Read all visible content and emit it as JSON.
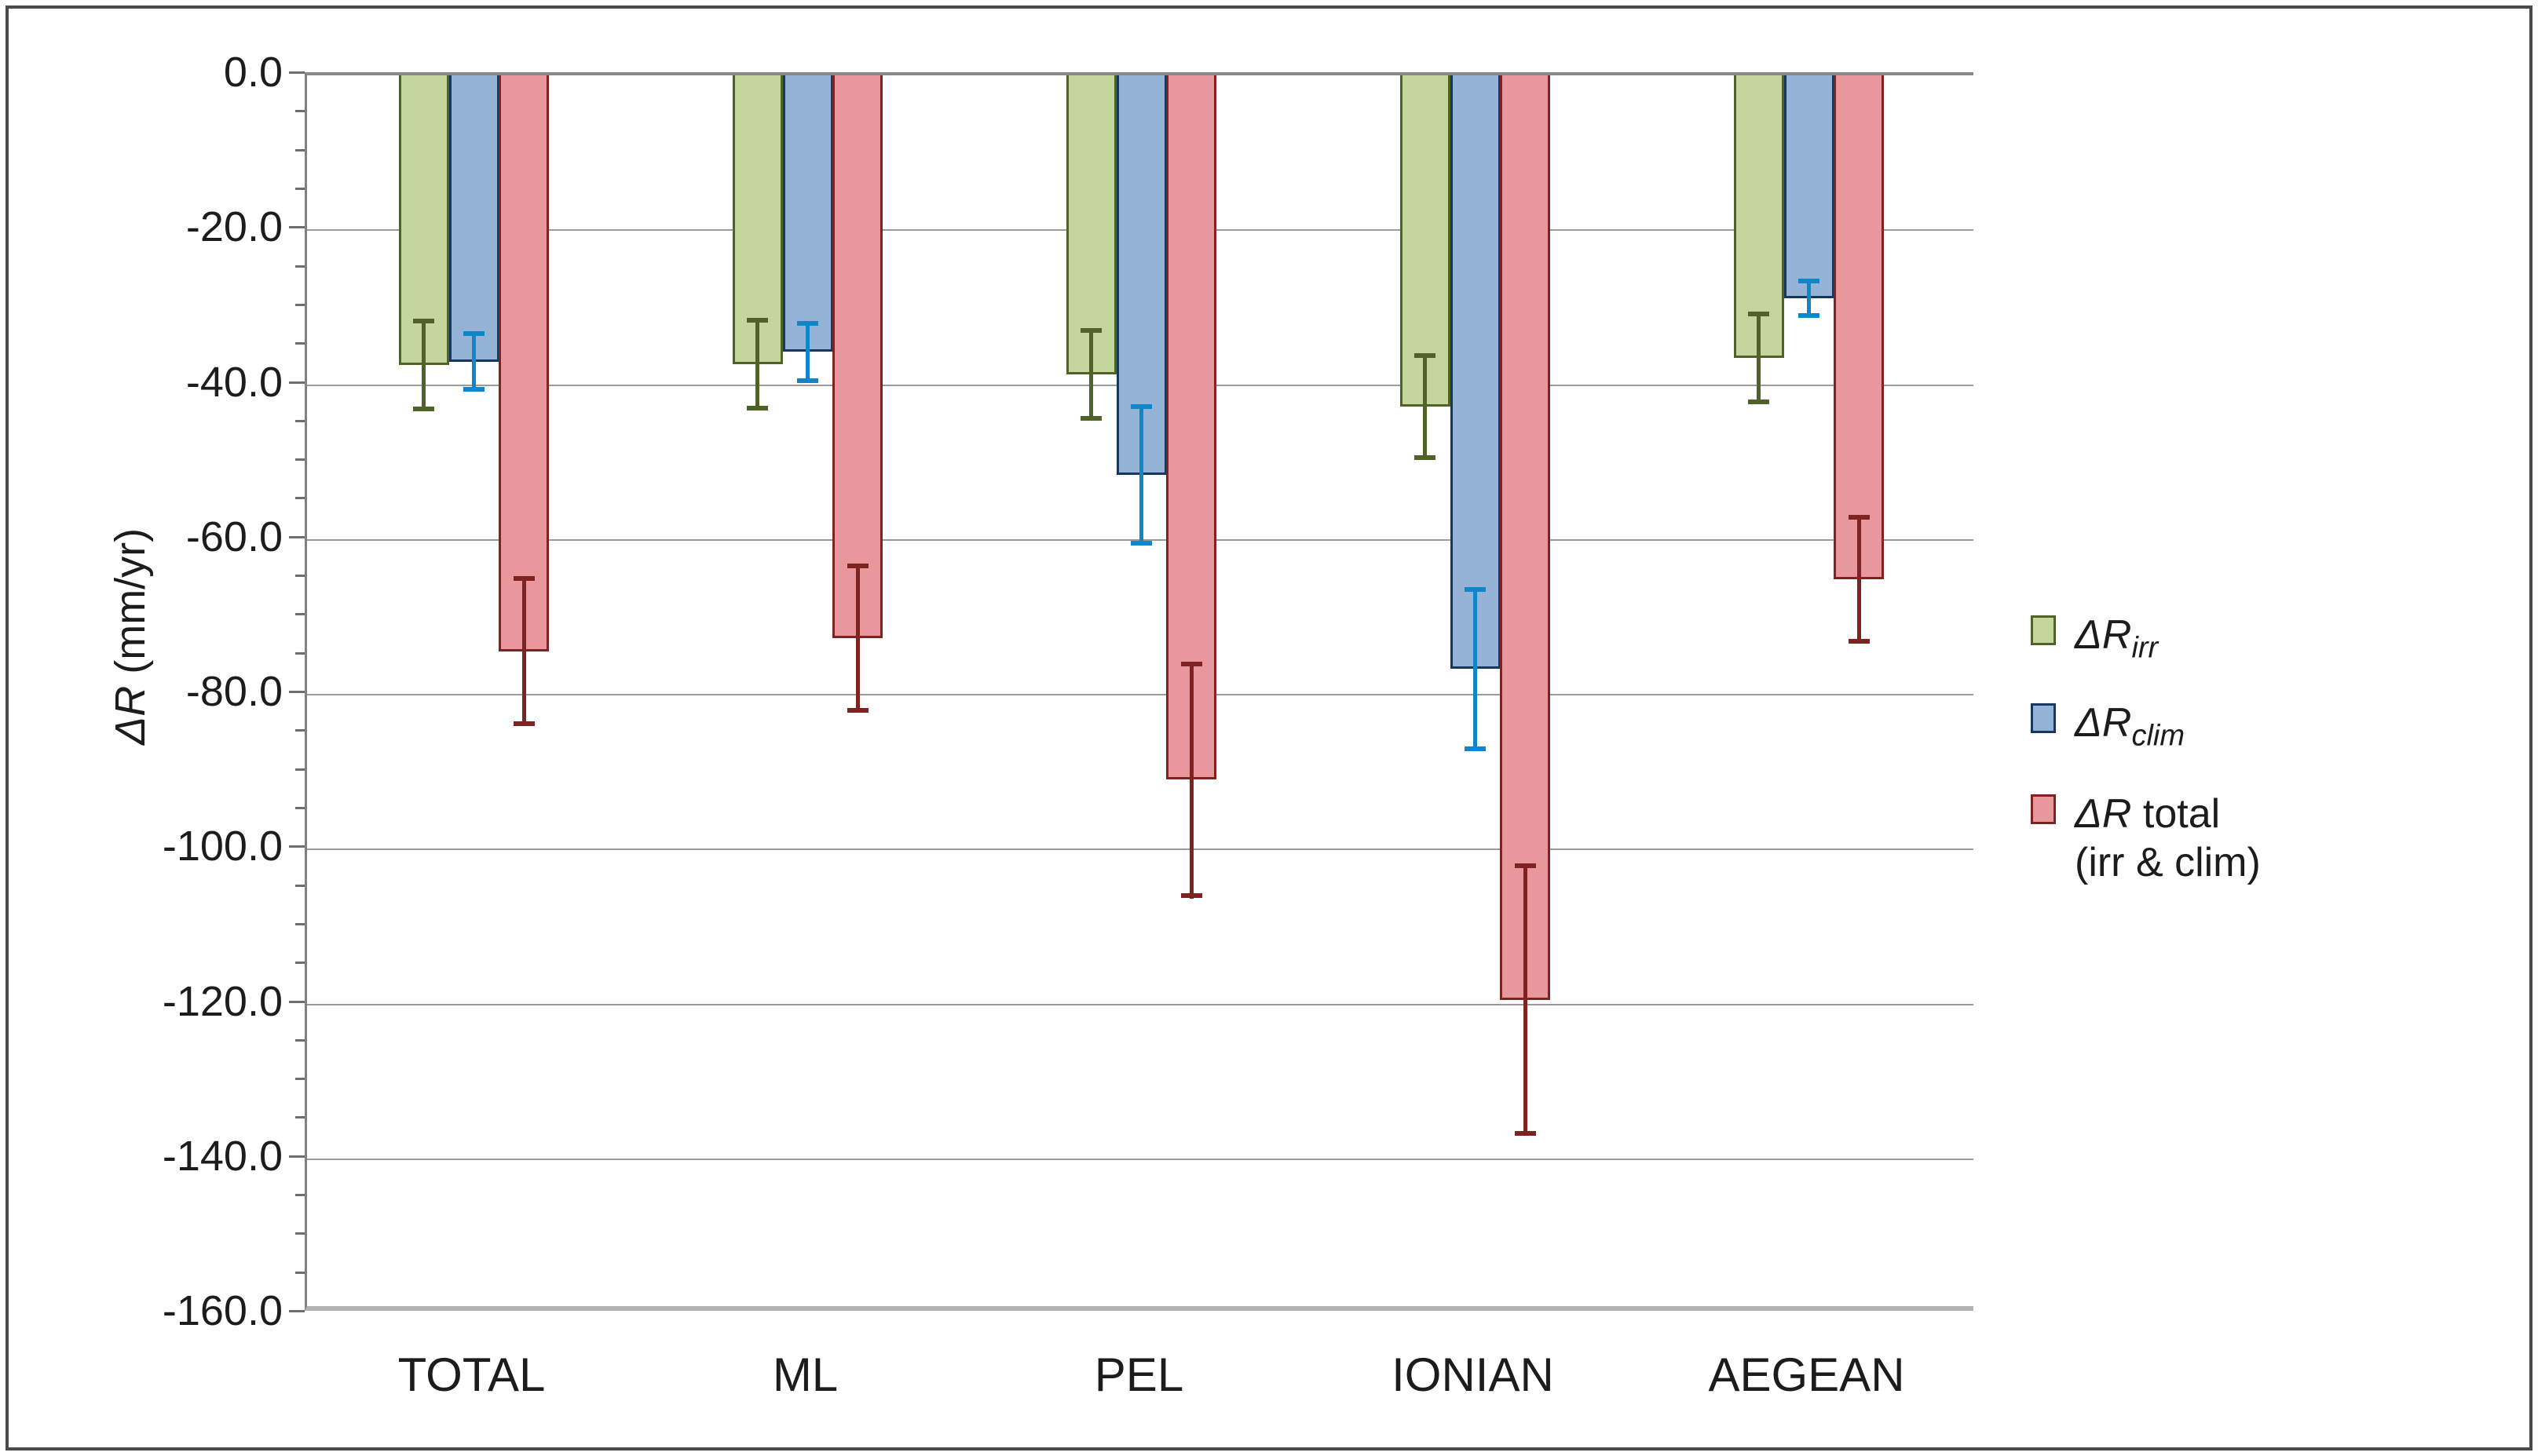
{
  "figure": {
    "y_title_italic": "ΔR",
    "y_title_rest": " (mm/yr)"
  },
  "legend": {
    "item1_main": "ΔR",
    "item1_sub": "irr",
    "item2_main": "ΔR",
    "item2_sub": "clim",
    "item3_main": "ΔR",
    "item3_rest": " total",
    "item3_line2": "(irr & clim)"
  },
  "chart_data": {
    "type": "bar",
    "title": "",
    "xlabel": "",
    "ylabel": "ΔR (mm/yr)",
    "ylim": [
      -160,
      0
    ],
    "ytick_step": 20,
    "ytick_minor_step": 5,
    "ytick_labels": [
      "0.0",
      "-20.0",
      "-40.0",
      "-60.0",
      "-80.0",
      "-100.0",
      "-120.0",
      "-140.0",
      "-160.0"
    ],
    "grid": true,
    "legend_position": "right",
    "categories": [
      "TOTAL",
      "ML",
      "PEL",
      "IONIAN",
      "AEGEAN"
    ],
    "series": [
      {
        "name": "ΔR_irr",
        "fill": "#c3d69b",
        "border": "#4f6228",
        "error_color": "#4f6228",
        "values": [
          -37.4,
          -37.3,
          -38.6,
          -42.8,
          -36.5
        ],
        "errors": [
          6.0,
          6.0,
          6.0,
          6.9,
          6.0
        ]
      },
      {
        "name": "ΔR_clim",
        "fill": "#95b3d7",
        "border": "#17375e",
        "error_color": "#1086c8",
        "values": [
          -37.0,
          -35.7,
          -51.6,
          -76.7,
          -28.8
        ],
        "errors": [
          3.9,
          4.0,
          9.1,
          10.6,
          2.5
        ]
      },
      {
        "name": "ΔR total (irr & clim)",
        "fill": "#e8989c",
        "border": "#7e2222",
        "error_color": "#7e2222",
        "values": [
          -74.4,
          -72.7,
          -91.0,
          -119.4,
          -65.1
        ],
        "errors": [
          9.7,
          9.6,
          15.3,
          17.6,
          8.3
        ]
      }
    ]
  }
}
